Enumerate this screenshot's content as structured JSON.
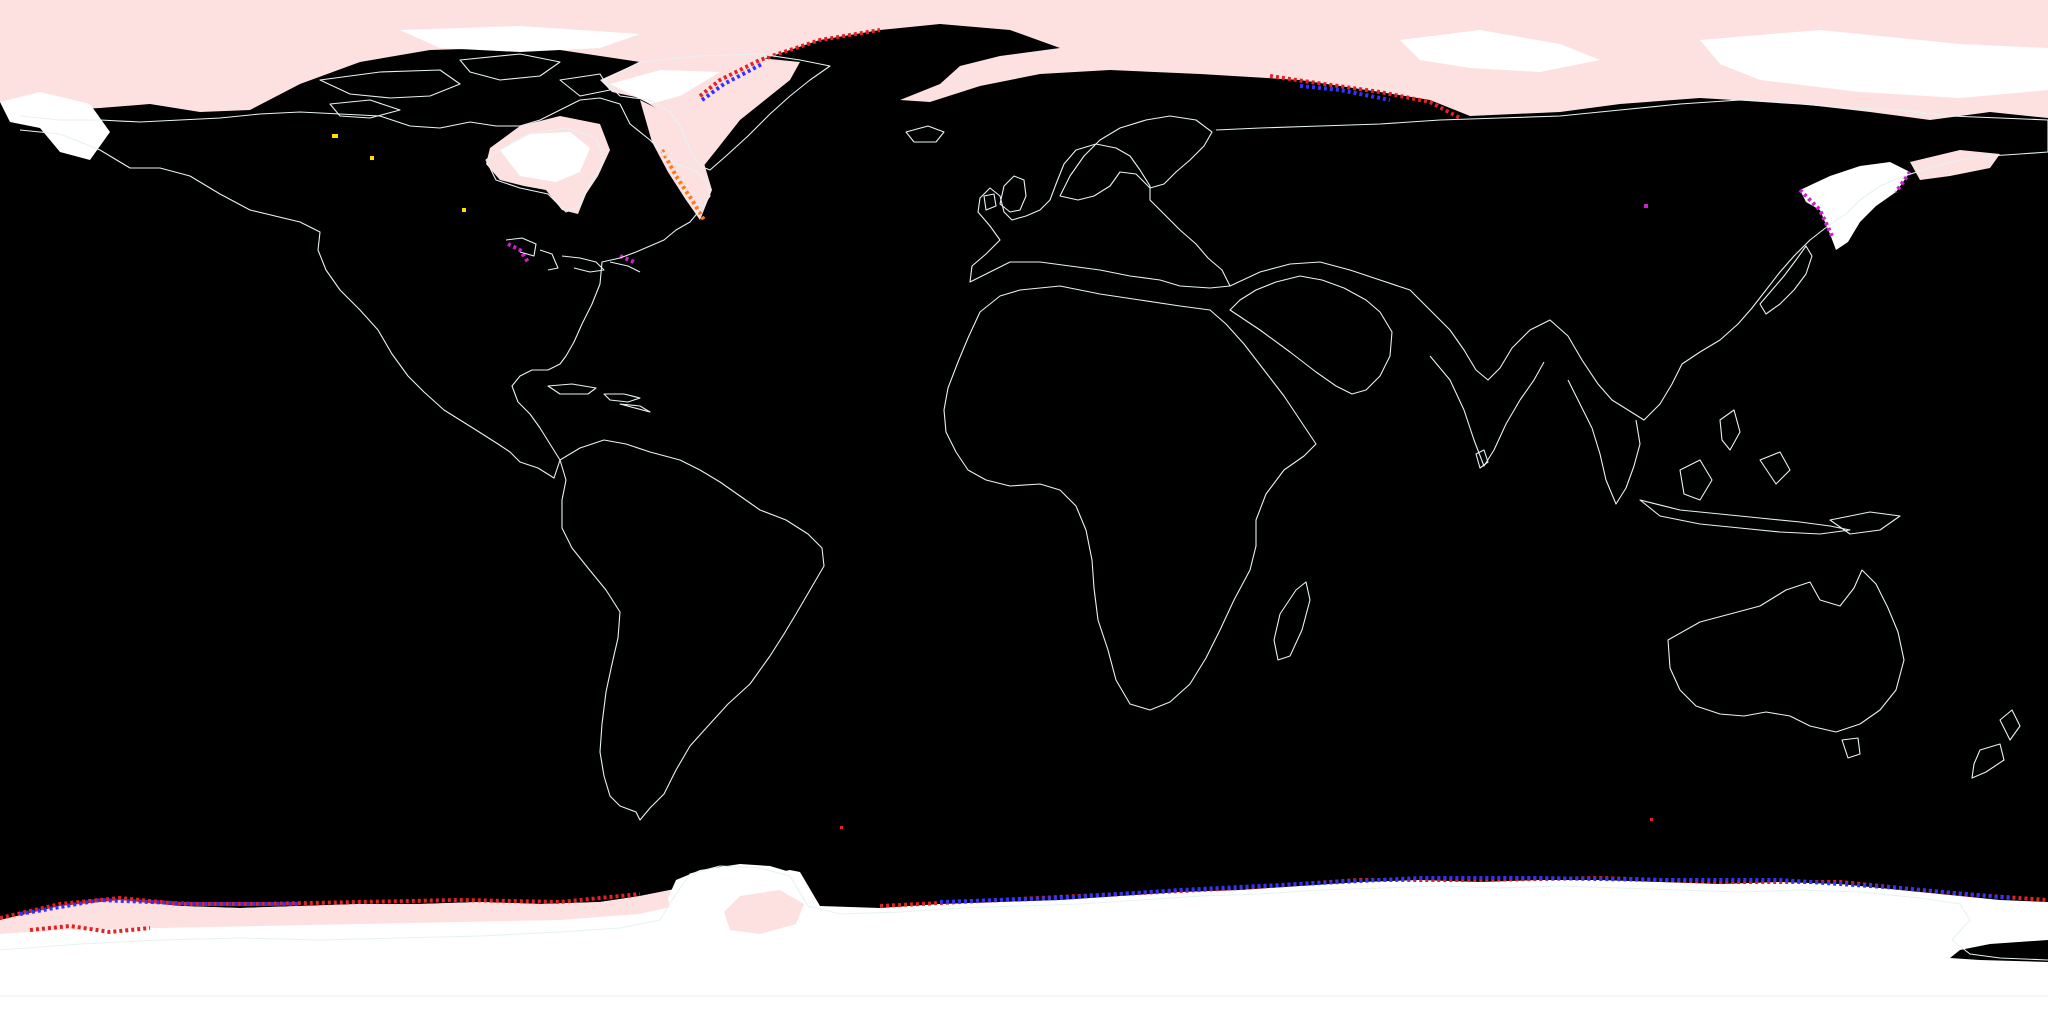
{
  "map": {
    "projection": "equirectangular",
    "background_color": "#000000",
    "coastline_color": "#e6f2f2",
    "legend": null,
    "title": "",
    "palette": {
      "snow_ice_high": "#ffffff",
      "snow_ice_mid": "#fde1e1",
      "edge_red": "#e52222",
      "edge_orange": "#ff7a1a",
      "edge_blue": "#3333ff",
      "edge_magenta": "#cc22cc",
      "edge_yellow": "#ffdd00"
    },
    "layers": [
      {
        "name": "arctic-sea-ice",
        "color_role": "snow_ice_mid"
      },
      {
        "name": "greenland-ice-sheet",
        "color_role": "snow_ice_mid"
      },
      {
        "name": "hudson-bay-ice",
        "color_role": "snow_ice_mid"
      },
      {
        "name": "sea-of-okhotsk-ice",
        "color_role": "snow_ice_high"
      },
      {
        "name": "antarctic-ice",
        "color_role": "snow_ice_high"
      },
      {
        "name": "weddell-sea-ice",
        "color_role": "snow_ice_mid"
      },
      {
        "name": "great-lakes-ice",
        "color_role": "edge_magenta"
      }
    ]
  }
}
